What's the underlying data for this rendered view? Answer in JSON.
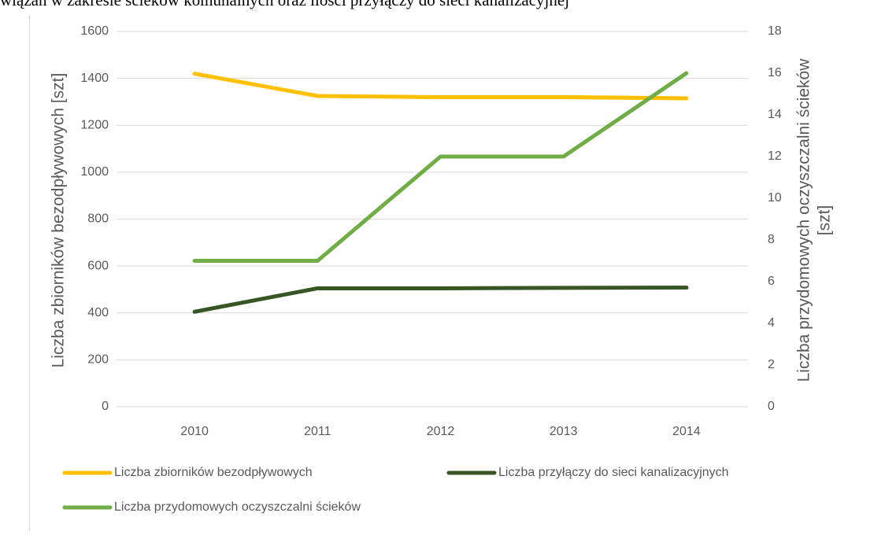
{
  "caption": "wiązań w zakresie ścieków komunalnych oraz ilości przyłączy do sieci kanalizacyjnej",
  "chart_data": {
    "type": "line",
    "ylabel": "Liczba zbiorników bezodpływowych [szt]",
    "y2label": [
      "Liczba przydomowych  oczyszczalni ścieków",
      "[szt]"
    ],
    "categories": [
      "2010",
      "2011",
      "2012",
      "2013",
      "2014"
    ],
    "series": [
      {
        "name": "Liczba zbiorników bezodpływowych",
        "color": "#ffc000",
        "values": [
          1420,
          1325,
          1320,
          1320,
          1315
        ]
      },
      {
        "name": "Liczba przyłączy do sieci kanalizacyjnych",
        "color": "#375623",
        "values": [
          405,
          505,
          505,
          507,
          508
        ]
      },
      {
        "name": "Liczba przydomowych oczyszczalni ścieków",
        "color": "#70ad47",
        "values": [
          7,
          7,
          12,
          12,
          16
        ],
        "axis": "y2"
      }
    ],
    "ylim": [
      0,
      1600
    ],
    "yticks": [
      0,
      200,
      400,
      600,
      800,
      1000,
      1200,
      1400,
      1600
    ],
    "y2lim": [
      0,
      18
    ],
    "y2ticks": [
      0,
      2,
      4,
      6,
      8,
      10,
      12,
      14,
      16,
      18
    ],
    "grid": true
  }
}
